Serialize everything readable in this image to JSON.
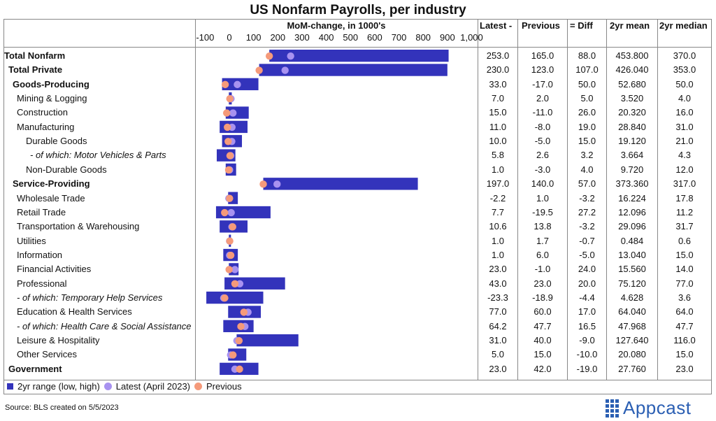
{
  "title": "US Nonfarm Payrolls, per industry",
  "headers": {
    "axis": "MoM-change, in 1000's",
    "latest": "Latest -",
    "previous": "Previous",
    "diff": "= Diff",
    "mean": "2yr mean",
    "median": "2yr median"
  },
  "colors": {
    "bar": "#3333bb",
    "latest": "#a892f0",
    "previous": "#f59a7a"
  },
  "chart_data": {
    "type": "bar",
    "title": "US Nonfarm Payrolls, per industry",
    "xlabel": "MoM-change, in 1000's",
    "xlim": [
      -150,
      1050
    ],
    "ticks": [
      -100,
      0,
      100,
      200,
      300,
      400,
      500,
      600,
      700,
      800,
      900,
      1000
    ],
    "tick_labels": [
      "-100",
      "0",
      "100",
      "200",
      "300",
      "400",
      "500",
      "600",
      "700",
      "800",
      "900",
      "1,000"
    ],
    "rows": [
      {
        "label": "Total Nonfarm",
        "style": "bold",
        "indent": 0,
        "low": 165,
        "high": 905,
        "latest": "253.0",
        "previous": "165.0",
        "diff": "88.0",
        "mean": "453.800",
        "median": "370.0"
      },
      {
        "label": "Total Private",
        "style": "bold",
        "indent": 1,
        "low": 123,
        "high": 900,
        "latest": "230.0",
        "previous": "123.0",
        "diff": "107.0",
        "mean": "426.040",
        "median": "353.0"
      },
      {
        "label": "Goods-Producing",
        "style": "bold",
        "indent": 2,
        "low": -30,
        "high": 120,
        "latest": "33.0",
        "previous": "-17.0",
        "diff": "50.0",
        "mean": "52.680",
        "median": "50.0"
      },
      {
        "label": "Mining & Logging",
        "style": "normal",
        "indent": 3,
        "low": -2,
        "high": 10,
        "latest": "7.0",
        "previous": "2.0",
        "diff": "5.0",
        "mean": "3.520",
        "median": "4.0"
      },
      {
        "label": "Construction",
        "style": "normal",
        "indent": 3,
        "low": -15,
        "high": 80,
        "latest": "15.0",
        "previous": "-11.0",
        "diff": "26.0",
        "mean": "20.320",
        "median": "16.0"
      },
      {
        "label": "Manufacturing",
        "style": "normal",
        "indent": 3,
        "low": -40,
        "high": 75,
        "latest": "11.0",
        "previous": "-8.0",
        "diff": "19.0",
        "mean": "28.840",
        "median": "31.0"
      },
      {
        "label": "Durable Goods",
        "style": "normal",
        "indent": 4,
        "low": -30,
        "high": 52,
        "latest": "10.0",
        "previous": "-5.0",
        "diff": "15.0",
        "mean": "19.120",
        "median": "21.0"
      },
      {
        "label": "- of which: Motor Vehicles & Parts",
        "style": "italic",
        "indent": 5,
        "low": -52,
        "high": 25,
        "latest": "5.8",
        "previous": "2.6",
        "diff": "3.2",
        "mean": "3.664",
        "median": "4.3"
      },
      {
        "label": "Non-Durable Goods",
        "style": "normal",
        "indent": 4,
        "low": -15,
        "high": 28,
        "latest": "1.0",
        "previous": "-3.0",
        "diff": "4.0",
        "mean": "9.720",
        "median": "12.0"
      },
      {
        "label": "Service-Providing",
        "style": "bold",
        "indent": 2,
        "low": 140,
        "high": 778,
        "latest": "197.0",
        "previous": "140.0",
        "diff": "57.0",
        "mean": "373.360",
        "median": "317.0"
      },
      {
        "label": "Wholesale Trade",
        "style": "normal",
        "indent": 3,
        "low": -5,
        "high": 35,
        "latest": "-2.2",
        "previous": "1.0",
        "diff": "-3.2",
        "mean": "16.224",
        "median": "17.8"
      },
      {
        "label": "Retail Trade",
        "style": "normal",
        "indent": 3,
        "low": -55,
        "high": 170,
        "latest": "7.7",
        "previous": "-19.5",
        "diff": "27.2",
        "mean": "12.096",
        "median": "11.2"
      },
      {
        "label": "Transportation & Warehousing",
        "style": "normal",
        "indent": 3,
        "low": -40,
        "high": 75,
        "latest": "10.6",
        "previous": "13.8",
        "diff": "-3.2",
        "mean": "29.096",
        "median": "31.7"
      },
      {
        "label": "Utilities",
        "style": "normal",
        "indent": 3,
        "low": -2,
        "high": 4,
        "latest": "1.0",
        "previous": "1.7",
        "diff": "-0.7",
        "mean": "0.484",
        "median": "0.6"
      },
      {
        "label": "Information",
        "style": "normal",
        "indent": 3,
        "low": -25,
        "high": 35,
        "latest": "1.0",
        "previous": "6.0",
        "diff": "-5.0",
        "mean": "13.040",
        "median": "15.0"
      },
      {
        "label": "Financial Activities",
        "style": "normal",
        "indent": 3,
        "low": -2,
        "high": 38,
        "latest": "23.0",
        "previous": "-1.0",
        "diff": "24.0",
        "mean": "15.560",
        "median": "14.0"
      },
      {
        "label": "Professional",
        "style": "normal",
        "indent": 3,
        "low": -20,
        "high": 230,
        "latest": "43.0",
        "previous": "23.0",
        "diff": "20.0",
        "mean": "75.120",
        "median": "77.0"
      },
      {
        "label": "- of which: Temporary Help Services",
        "style": "italic",
        "indent": 3,
        "low": -95,
        "high": 140,
        "latest": "-23.3",
        "previous": "-18.9",
        "diff": "-4.4",
        "mean": "4.628",
        "median": "3.6"
      },
      {
        "label": "Education & Health Services",
        "style": "normal",
        "indent": 3,
        "low": -5,
        "high": 130,
        "latest": "77.0",
        "previous": "60.0",
        "diff": "17.0",
        "mean": "64.040",
        "median": "64.0"
      },
      {
        "label": "- of which: Health Care & Social Assistance",
        "style": "italic",
        "indent": 3,
        "low": -25,
        "high": 100,
        "latest": "64.2",
        "previous": "47.7",
        "diff": "16.5",
        "mean": "47.968",
        "median": "47.7"
      },
      {
        "label": "Leisure & Hospitality",
        "style": "normal",
        "indent": 3,
        "low": 30,
        "high": 285,
        "latest": "31.0",
        "previous": "40.0",
        "diff": "-9.0",
        "mean": "127.640",
        "median": "116.0"
      },
      {
        "label": "Other Services",
        "style": "normal",
        "indent": 3,
        "low": -5,
        "high": 70,
        "latest": "5.0",
        "previous": "15.0",
        "diff": "-10.0",
        "mean": "20.080",
        "median": "15.0"
      },
      {
        "label": "Government",
        "style": "bold",
        "indent": 1,
        "low": -40,
        "high": 120,
        "latest": "23.0",
        "previous": "42.0",
        "diff": "-19.0",
        "mean": "27.760",
        "median": "23.0"
      }
    ],
    "legend": [
      "2yr range (low, high)",
      "Latest (April 2023)",
      "Previous"
    ],
    "legend_position": "bottom-left"
  },
  "source": "Source: BLS created on 5/5/2023",
  "logo": "Appcast"
}
